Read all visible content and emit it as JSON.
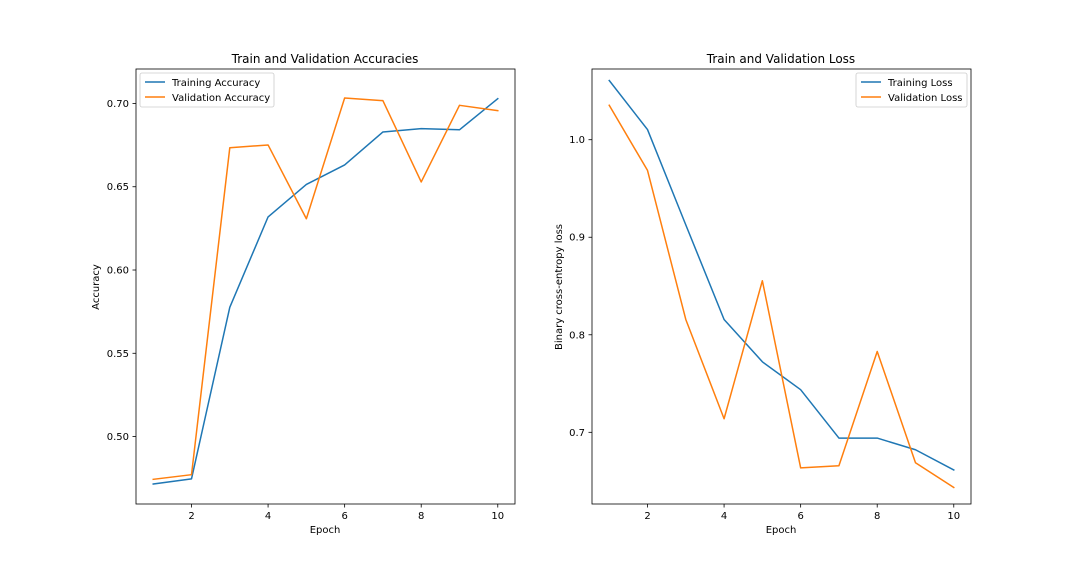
{
  "colors": {
    "series_a": "#1f77b4",
    "series_b": "#ff7f0e"
  },
  "chart_data": [
    {
      "type": "line",
      "title": "Train and Validation Accuracies",
      "xlabel": "Epoch",
      "ylabel": "Accuracy",
      "xlim": [
        0.55,
        10.45
      ],
      "ylim": [
        0.4595,
        0.7207
      ],
      "xticks": [
        2,
        4,
        6,
        8,
        10
      ],
      "yticks": [
        0.5,
        0.55,
        0.6,
        0.65,
        0.7
      ],
      "ytick_labels": [
        "0.50",
        "0.55",
        "0.60",
        "0.65",
        "0.70"
      ],
      "grid": false,
      "legend": "upper-left",
      "x": [
        1,
        2,
        3,
        4,
        5,
        6,
        7,
        8,
        9,
        10
      ],
      "series": [
        {
          "name": "Training Accuracy",
          "values": [
            0.4715,
            0.4746,
            0.5776,
            0.6319,
            0.6514,
            0.6631,
            0.6829,
            0.6849,
            0.6842,
            0.7029
          ]
        },
        {
          "name": "Validation Accuracy",
          "values": [
            0.4743,
            0.4771,
            0.6734,
            0.6751,
            0.6308,
            0.7033,
            0.7017,
            0.6529,
            0.6989,
            0.6957
          ]
        }
      ]
    },
    {
      "type": "line",
      "title": "Train and Validation Loss",
      "xlabel": "Epoch",
      "ylabel": "Binary cross-entropy loss",
      "xlim": [
        0.55,
        10.45
      ],
      "ylim": [
        0.6265,
        1.0725
      ],
      "xticks": [
        2,
        4,
        6,
        8,
        10
      ],
      "yticks": [
        0.7,
        0.8,
        0.9,
        1.0
      ],
      "ytick_labels": [
        "0.7",
        "0.8",
        "0.9",
        "1.0"
      ],
      "grid": false,
      "legend": "upper-right",
      "x": [
        1,
        2,
        3,
        4,
        5,
        6,
        7,
        8,
        9,
        10
      ],
      "series": [
        {
          "name": "Training Loss",
          "values": [
            1.0607,
            1.0104,
            0.9127,
            0.8157,
            0.7723,
            0.7437,
            0.6941,
            0.6941,
            0.6821,
            0.6614
          ]
        },
        {
          "name": "Validation Loss",
          "values": [
            1.0353,
            0.9685,
            0.8157,
            0.7139,
            0.8554,
            0.6636,
            0.6657,
            0.7829,
            0.6688,
            0.6434
          ]
        }
      ]
    }
  ]
}
